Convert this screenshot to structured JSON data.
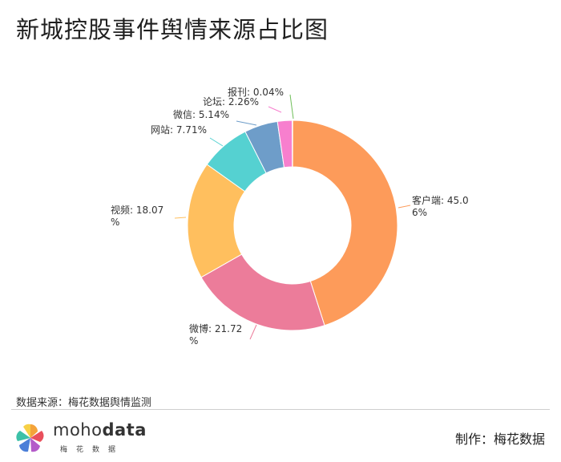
{
  "title": "新城控股事件舆情来源占比图",
  "chart_data": {
    "type": "pie",
    "donut": true,
    "title": "新城控股事件舆情来源占比图",
    "slices": [
      {
        "name": "客户端",
        "value": 45.06,
        "label_lines": [
          "客户端: 45.0",
          "6%"
        ],
        "color": "#fd9b5a"
      },
      {
        "name": "微博",
        "value": 21.72,
        "label_lines": [
          "微博: 21.72",
          "%"
        ],
        "color": "#ec7c9a"
      },
      {
        "name": "视频",
        "value": 18.07,
        "label_lines": [
          "视频: 18.07",
          "%"
        ],
        "color": "#ffbf5e"
      },
      {
        "name": "网站",
        "value": 7.71,
        "label_lines": [
          "网站: 7.71%"
        ],
        "color": "#55d1d1"
      },
      {
        "name": "微信",
        "value": 5.14,
        "label_lines": [
          "微信: 5.14%"
        ],
        "color": "#6e9dc9"
      },
      {
        "name": "论坛",
        "value": 2.26,
        "label_lines": [
          "论坛: 2.26%"
        ],
        "color": "#f77fce"
      },
      {
        "name": "报刊",
        "value": 0.04,
        "label_lines": [
          "报刊: 0.04%"
        ],
        "color": "#6fbf5a"
      }
    ]
  },
  "source": "数据来源：梅花数据舆情监测",
  "logo": {
    "word_light": "moho",
    "word_bold": "data",
    "sub": "梅花数据"
  },
  "credit": "制作：梅花数据"
}
